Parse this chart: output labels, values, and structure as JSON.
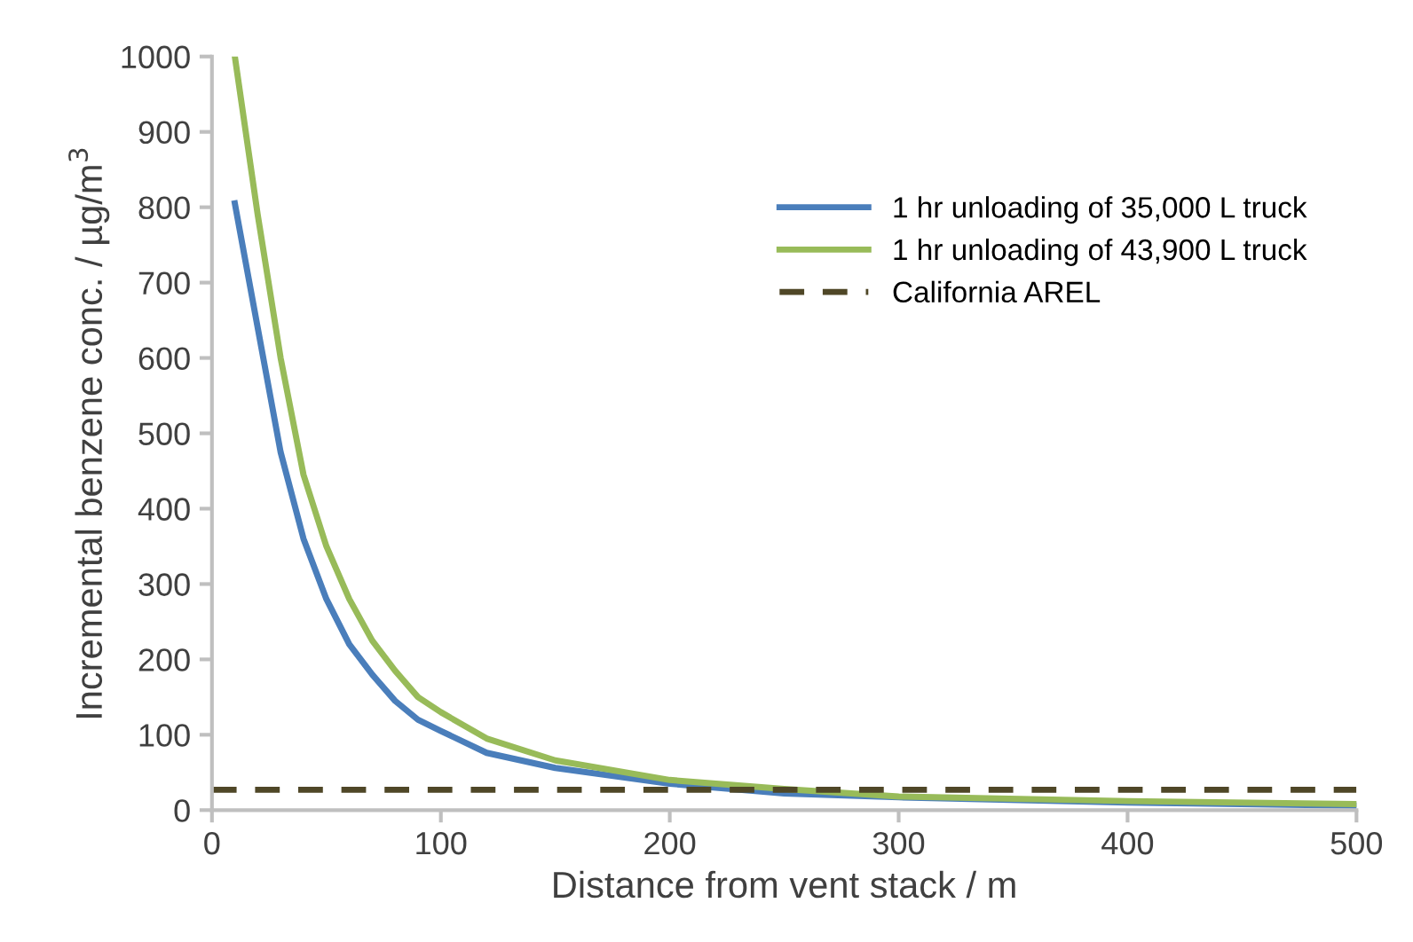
{
  "chart_data": {
    "type": "line",
    "xlabel": "Distance from vent stack / m",
    "ylabel": "Incremental benzene conc. / µg/m$^{3}$",
    "xlim": [
      0,
      500
    ],
    "xticks": [
      0,
      100,
      200,
      300,
      400,
      500
    ],
    "ylim": [
      0,
      1000
    ],
    "yticks": [
      0,
      100,
      200,
      300,
      400,
      500,
      600,
      700,
      800,
      900,
      1000
    ],
    "grid": false,
    "legend": "top right",
    "marker": "none",
    "line_style": "solid",
    "series": [
      {
        "name": "1 hr unloading of 35,000 L truck",
        "color": "#4a7ebb",
        "x": [
          10,
          20,
          30,
          40,
          50,
          60,
          70,
          80,
          90,
          100,
          120,
          150,
          200,
          250,
          300,
          400,
          500
        ],
        "values": [
          805,
          640,
          475,
          360,
          280,
          220,
          180,
          145,
          120,
          105,
          76,
          56,
          35,
          22,
          17,
          10,
          6
        ]
      },
      {
        "name": "1 hr unloading of 43,900 L truck",
        "color": "#98bb59",
        "x": [
          10,
          20,
          30,
          40,
          50,
          60,
          70,
          80,
          90,
          100,
          120,
          150,
          200,
          250,
          300,
          400,
          500
        ],
        "values": [
          1000,
          790,
          600,
          445,
          350,
          280,
          225,
          185,
          150,
          130,
          95,
          66,
          40,
          28,
          18,
          12,
          8
        ]
      }
    ],
    "ref_lines": [
      {
        "axis": "y",
        "value": 27,
        "label": "California AREL",
        "color": "#4f4727",
        "line_style": "dashed"
      }
    ]
  }
}
